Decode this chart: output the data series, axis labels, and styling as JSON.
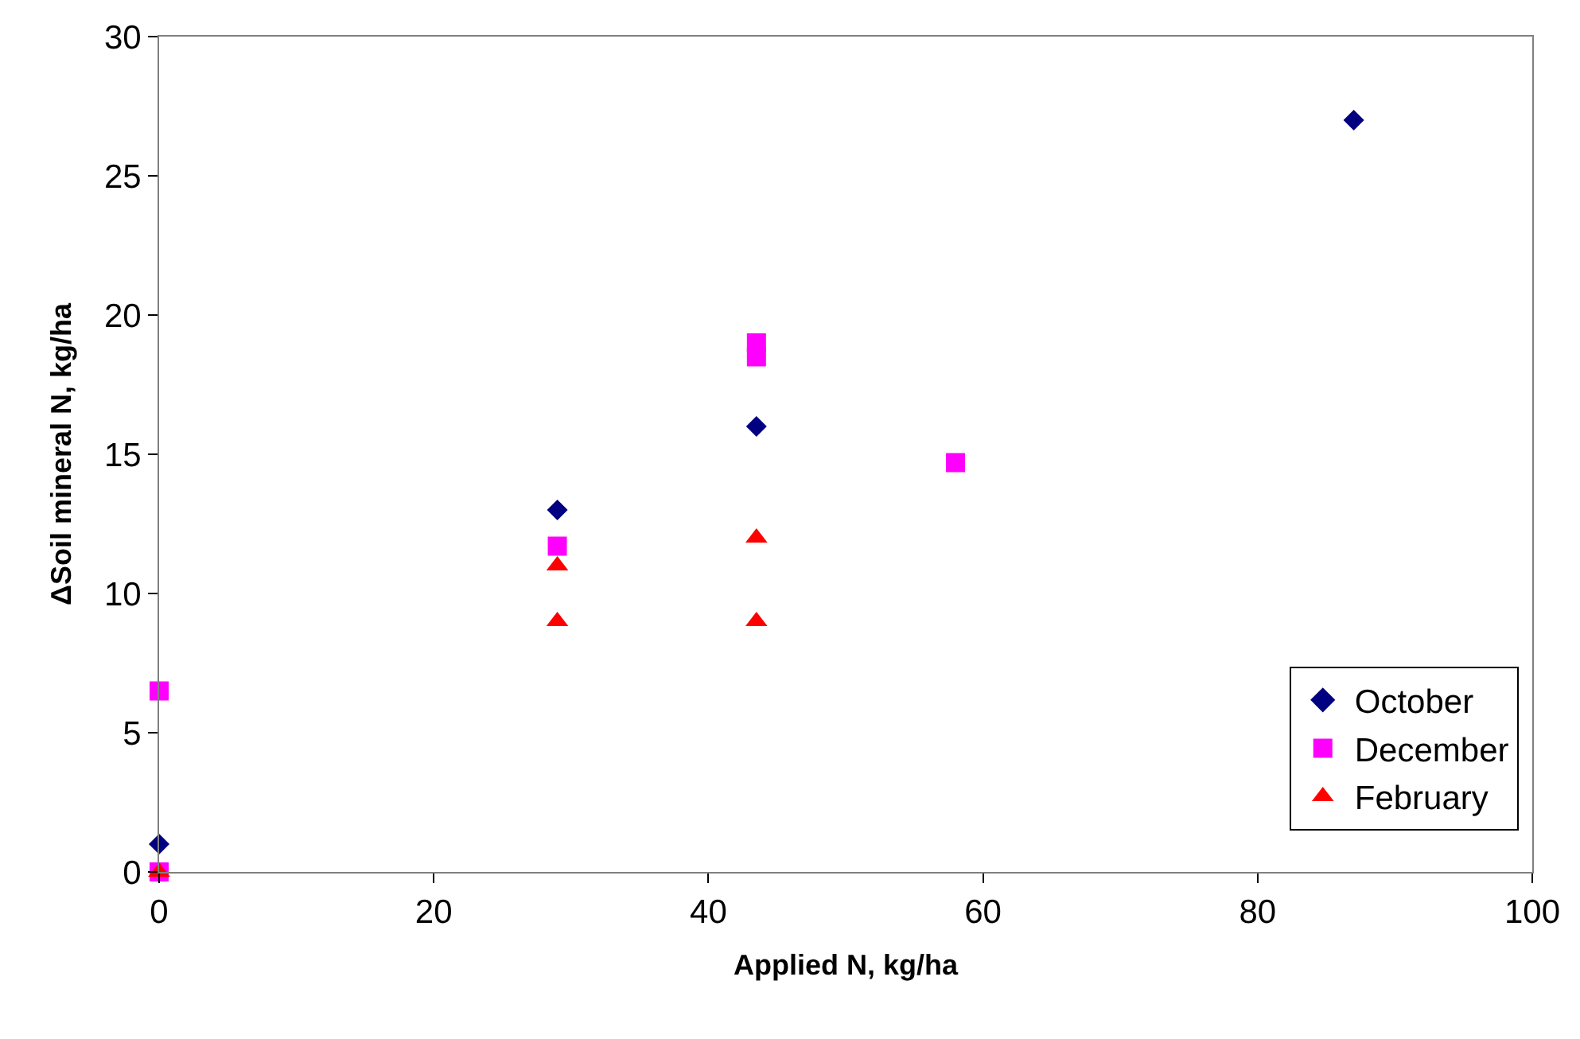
{
  "chart_data": {
    "type": "scatter",
    "xlabel": "Applied N, kg/ha",
    "ylabel": "ΔSoil mineral N, kg/ha",
    "xlim": [
      0,
      100
    ],
    "xticks": [
      0,
      20,
      40,
      60,
      80,
      100
    ],
    "ylim": [
      0,
      30
    ],
    "yticks": [
      0,
      5,
      10,
      15,
      20,
      25,
      30
    ],
    "legend": "bottom right",
    "series": [
      {
        "name": "October",
        "color": "#000080",
        "marker": "diamond",
        "x": [
          0,
          29,
          43.5,
          87
        ],
        "values": [
          1,
          13,
          16,
          27
        ]
      },
      {
        "name": "December",
        "color": "#ff00ff",
        "marker": "square",
        "x": [
          0,
          0,
          29,
          43.5,
          43.5,
          58
        ],
        "values": [
          6.5,
          0,
          11.7,
          19,
          18.5,
          14.7
        ]
      },
      {
        "name": "February",
        "color": "#ff0000",
        "marker": "triangle",
        "x": [
          0,
          29,
          29,
          43.5,
          43.5
        ],
        "values": [
          0,
          11,
          9,
          12,
          9
        ]
      }
    ]
  }
}
